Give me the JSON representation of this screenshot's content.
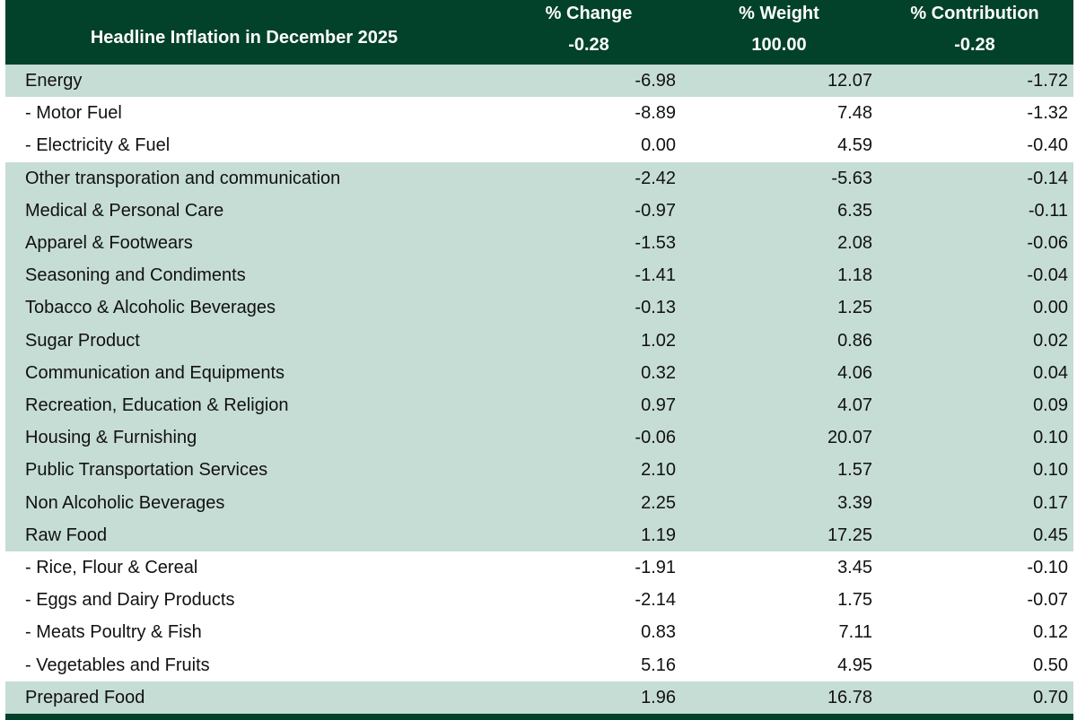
{
  "header": {
    "title": "Headline Inflation in December 2025",
    "columns": [
      {
        "name": "% Change",
        "total": "-0.28"
      },
      {
        "name": "% Weight",
        "total": "100.00"
      },
      {
        "name": "% Contribution",
        "total": "-0.28"
      }
    ]
  },
  "table": {
    "rows": [
      [
        "Energy",
        "-6.98",
        "12.07",
        "-1.72"
      ],
      [
        "- Motor Fuel",
        "-8.89",
        "7.48",
        "-1.32"
      ],
      [
        "- Electricity & Fuel",
        "0.00",
        "4.59",
        "-0.40"
      ],
      [
        "Other transporation and communication",
        "-2.42",
        "-5.63",
        "-0.14"
      ],
      [
        "Medical & Personal Care",
        "-0.97",
        "6.35",
        "-0.11"
      ],
      [
        "Apparel & Footwears",
        "-1.53",
        "2.08",
        "-0.06"
      ],
      [
        "Seasoning and Condiments",
        "-1.41",
        "1.18",
        "-0.04"
      ],
      [
        "Tobacco & Alcoholic Beverages",
        "-0.13",
        "1.25",
        "0.00"
      ],
      [
        "Sugar Product",
        "1.02",
        "0.86",
        "0.02"
      ],
      [
        "Communication and Equipments",
        "0.32",
        "4.06",
        "0.04"
      ],
      [
        "Recreation, Education & Religion",
        "0.97",
        "4.07",
        "0.09"
      ],
      [
        "Housing & Furnishing",
        "-0.06",
        "20.07",
        "0.10"
      ],
      [
        "Public Transportation Services",
        "2.10",
        "1.57",
        "0.10"
      ],
      [
        "Non Alcoholic Beverages",
        "2.25",
        "3.39",
        "0.17"
      ],
      [
        "Raw Food",
        "1.19",
        "17.25",
        "0.45"
      ],
      [
        "- Rice, Flour & Cereal",
        "-1.91",
        "3.45",
        "-0.10"
      ],
      [
        "- Eggs and Dairy Products",
        "-2.14",
        "1.75",
        "-0.07"
      ],
      [
        "- Meats Poultry & Fish",
        "0.83",
        "7.11",
        "0.12"
      ],
      [
        "- Vegetables and Fruits",
        "5.16",
        "4.95",
        "0.50"
      ],
      [
        "Prepared Food",
        "1.96",
        "16.78",
        "0.70"
      ]
    ]
  }
}
